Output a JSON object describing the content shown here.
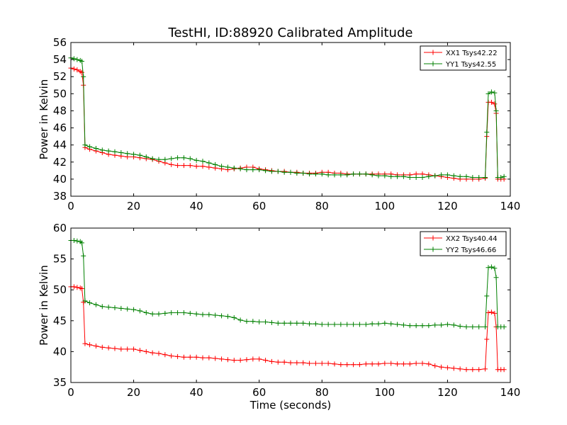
{
  "chart_data": [
    {
      "type": "line",
      "title": "TestHI, ID:88920 Calibrated Amplitude",
      "xlabel": "",
      "ylabel": "Power in Kelvin",
      "xlim": [
        0,
        140
      ],
      "ylim": [
        38,
        56
      ],
      "xticks": [
        "0",
        "20",
        "40",
        "60",
        "80",
        "100",
        "120",
        "140"
      ],
      "yticks": [
        "38",
        "40",
        "42",
        "44",
        "46",
        "48",
        "50",
        "52",
        "54",
        "56"
      ],
      "legend_position": "top-right",
      "series": [
        {
          "name": "XX1 Tsys42.22",
          "color": "#ff0000",
          "x": [
            0,
            1,
            2,
            3,
            3.5,
            4,
            4.5,
            6,
            8,
            10,
            12,
            14,
            16,
            18,
            20,
            22,
            24,
            26,
            28,
            30,
            32,
            34,
            36,
            38,
            40,
            42,
            44,
            46,
            48,
            50,
            52,
            54,
            56,
            58,
            60,
            62,
            64,
            66,
            68,
            70,
            72,
            74,
            76,
            78,
            80,
            82,
            84,
            86,
            88,
            90,
            92,
            94,
            96,
            98,
            100,
            102,
            104,
            106,
            108,
            110,
            112,
            114,
            116,
            118,
            120,
            122,
            124,
            126,
            128,
            130,
            132,
            132.5,
            133,
            134,
            135,
            135.5,
            136,
            137,
            138
          ],
          "y": [
            53.0,
            52.9,
            52.8,
            52.6,
            52.5,
            51.0,
            43.7,
            43.5,
            43.3,
            43.1,
            42.9,
            42.8,
            42.7,
            42.6,
            42.6,
            42.5,
            42.4,
            42.3,
            42.1,
            41.9,
            41.7,
            41.6,
            41.6,
            41.6,
            41.5,
            41.5,
            41.4,
            41.3,
            41.2,
            41.1,
            41.2,
            41.3,
            41.4,
            41.4,
            41.2,
            41.1,
            41.0,
            40.9,
            40.9,
            40.8,
            40.8,
            40.7,
            40.7,
            40.7,
            40.8,
            40.8,
            40.7,
            40.7,
            40.6,
            40.6,
            40.6,
            40.6,
            40.6,
            40.6,
            40.6,
            40.6,
            40.5,
            40.5,
            40.5,
            40.6,
            40.6,
            40.5,
            40.4,
            40.3,
            40.2,
            40.1,
            40.0,
            40.0,
            40.0,
            40.0,
            40.1,
            45.0,
            49.0,
            49.0,
            48.8,
            47.7,
            40.0,
            40.0,
            40.0
          ]
        },
        {
          "name": "YY1 Tsys42.55",
          "color": "#008000",
          "x": [
            0,
            1,
            2,
            3,
            3.5,
            4,
            4.5,
            6,
            8,
            10,
            12,
            14,
            16,
            18,
            20,
            22,
            24,
            26,
            28,
            30,
            32,
            34,
            36,
            38,
            40,
            42,
            44,
            46,
            48,
            50,
            52,
            54,
            56,
            58,
            60,
            62,
            64,
            66,
            68,
            70,
            72,
            74,
            76,
            78,
            80,
            82,
            84,
            86,
            88,
            90,
            92,
            94,
            96,
            98,
            100,
            102,
            104,
            106,
            108,
            110,
            112,
            114,
            116,
            118,
            120,
            122,
            124,
            126,
            128,
            130,
            132,
            132.5,
            133,
            134,
            135,
            135.5,
            136,
            137,
            138
          ],
          "y": [
            54.2,
            54.1,
            54.0,
            53.9,
            53.8,
            52.0,
            44.0,
            43.8,
            43.6,
            43.4,
            43.3,
            43.2,
            43.1,
            43.0,
            42.9,
            42.8,
            42.6,
            42.4,
            42.3,
            42.3,
            42.4,
            42.5,
            42.5,
            42.4,
            42.2,
            42.1,
            41.9,
            41.7,
            41.5,
            41.4,
            41.3,
            41.2,
            41.1,
            41.1,
            41.1,
            41.0,
            40.9,
            40.9,
            40.8,
            40.8,
            40.7,
            40.7,
            40.6,
            40.6,
            40.6,
            40.5,
            40.5,
            40.5,
            40.5,
            40.6,
            40.6,
            40.6,
            40.5,
            40.4,
            40.4,
            40.3,
            40.3,
            40.3,
            40.2,
            40.2,
            40.2,
            40.3,
            40.4,
            40.5,
            40.5,
            40.4,
            40.3,
            40.3,
            40.2,
            40.2,
            40.2,
            45.5,
            50.0,
            50.2,
            50.1,
            48.0,
            40.2,
            40.2,
            40.3
          ]
        }
      ]
    },
    {
      "type": "line",
      "title": "",
      "xlabel": "Time (seconds)",
      "ylabel": "Power in Kelvin",
      "xlim": [
        0,
        140
      ],
      "ylim": [
        35,
        60
      ],
      "xticks": [
        "0",
        "20",
        "40",
        "60",
        "80",
        "100",
        "120",
        "140"
      ],
      "yticks": [
        "35",
        "40",
        "45",
        "50",
        "55",
        "60"
      ],
      "legend_position": "top-right",
      "series": [
        {
          "name": "XX2 Tsys40.44",
          "color": "#ff0000",
          "x": [
            0,
            1,
            2,
            3,
            3.5,
            4,
            4.5,
            6,
            8,
            10,
            12,
            14,
            16,
            18,
            20,
            22,
            24,
            26,
            28,
            30,
            32,
            34,
            36,
            38,
            40,
            42,
            44,
            46,
            48,
            50,
            52,
            54,
            56,
            58,
            60,
            62,
            64,
            66,
            68,
            70,
            72,
            74,
            76,
            78,
            80,
            82,
            84,
            86,
            88,
            90,
            92,
            94,
            96,
            98,
            100,
            102,
            104,
            106,
            108,
            110,
            112,
            114,
            116,
            118,
            120,
            122,
            124,
            126,
            128,
            130,
            132,
            132.5,
            133,
            134,
            135,
            135.5,
            136,
            137,
            138
          ],
          "y": [
            50.5,
            50.5,
            50.4,
            50.3,
            50.2,
            48.0,
            41.3,
            41.1,
            40.9,
            40.7,
            40.6,
            40.5,
            40.4,
            40.4,
            40.4,
            40.2,
            40.0,
            39.8,
            39.7,
            39.5,
            39.3,
            39.2,
            39.1,
            39.1,
            39.1,
            39.0,
            39.0,
            38.9,
            38.8,
            38.7,
            38.6,
            38.6,
            38.7,
            38.8,
            38.8,
            38.6,
            38.4,
            38.3,
            38.3,
            38.2,
            38.2,
            38.2,
            38.1,
            38.1,
            38.1,
            38.1,
            38.0,
            37.9,
            37.9,
            37.9,
            37.9,
            38.0,
            38.0,
            38.0,
            38.1,
            38.1,
            38.0,
            38.0,
            38.0,
            38.1,
            38.1,
            38.0,
            37.7,
            37.5,
            37.4,
            37.3,
            37.2,
            37.1,
            37.1,
            37.1,
            37.2,
            42.0,
            46.3,
            46.4,
            46.2,
            44.0,
            37.1,
            37.1,
            37.1
          ]
        },
        {
          "name": "YY2 Tsys46.66",
          "color": "#008000",
          "x": [
            0,
            1,
            2,
            3,
            3.5,
            4,
            4.5,
            6,
            8,
            10,
            12,
            14,
            16,
            18,
            20,
            22,
            24,
            26,
            28,
            30,
            32,
            34,
            36,
            38,
            40,
            42,
            44,
            46,
            48,
            50,
            52,
            54,
            56,
            58,
            60,
            62,
            64,
            66,
            68,
            70,
            72,
            74,
            76,
            78,
            80,
            82,
            84,
            86,
            88,
            90,
            92,
            94,
            96,
            98,
            100,
            102,
            104,
            106,
            108,
            110,
            112,
            114,
            116,
            118,
            120,
            122,
            124,
            126,
            128,
            130,
            132,
            132.5,
            133,
            134,
            135,
            135.5,
            136,
            137,
            138
          ],
          "y": [
            58.0,
            58.0,
            57.9,
            57.8,
            57.6,
            55.5,
            48.2,
            47.9,
            47.6,
            47.3,
            47.2,
            47.1,
            47.0,
            46.9,
            46.8,
            46.6,
            46.3,
            46.1,
            46.1,
            46.2,
            46.3,
            46.3,
            46.3,
            46.2,
            46.1,
            46.0,
            46.0,
            45.9,
            45.8,
            45.7,
            45.5,
            45.1,
            44.9,
            44.9,
            44.8,
            44.8,
            44.7,
            44.6,
            44.6,
            44.6,
            44.6,
            44.6,
            44.5,
            44.5,
            44.4,
            44.4,
            44.4,
            44.4,
            44.4,
            44.4,
            44.4,
            44.4,
            44.5,
            44.5,
            44.6,
            44.5,
            44.4,
            44.3,
            44.2,
            44.2,
            44.2,
            44.2,
            44.3,
            44.3,
            44.4,
            44.3,
            44.1,
            44.0,
            44.0,
            44.0,
            44.0,
            49.0,
            53.6,
            53.7,
            53.5,
            52.0,
            44.0,
            44.0,
            44.0
          ]
        }
      ]
    }
  ]
}
